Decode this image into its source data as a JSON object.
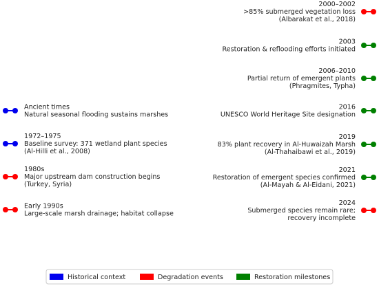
{
  "events": [
    {
      "side": "left",
      "y": 161,
      "color": "#0000ee",
      "lines": [
        "Ancient times",
        "Natural seasonal flooding sustains marshes"
      ]
    },
    {
      "side": "left",
      "y": 209,
      "color": "#0000ee",
      "lines": [
        "1972–1975",
        "Baseline survey: 371 wetland plant species",
        "(Al-Hilli et al., 2008)"
      ]
    },
    {
      "side": "left",
      "y": 257,
      "color": "#ff0000",
      "lines": [
        "1980s",
        "Major upstream dam construction begins",
        "(Turkey, Syria)"
      ]
    },
    {
      "side": "left",
      "y": 305,
      "color": "#ff0000",
      "lines": [
        "Early 1990s",
        "Large-scale marsh drainage; habitat collapse"
      ]
    },
    {
      "side": "right",
      "y": 17,
      "color": "#ff0000",
      "lines": [
        "2000–2002",
        ">85% submerged vegetation loss",
        "(Albarakat et al., 2018)"
      ]
    },
    {
      "side": "right",
      "y": 66,
      "color": "#008000",
      "lines": [
        "2003",
        "Restoration & reflooding efforts initiated"
      ]
    },
    {
      "side": "right",
      "y": 114,
      "color": "#008000",
      "lines": [
        "2006–2010",
        "Partial return of emergent plants",
        "(Phragmites, Typha)"
      ]
    },
    {
      "side": "right",
      "y": 161,
      "color": "#008000",
      "lines": [
        "2016",
        "UNESCO World Heritage Site designation"
      ]
    },
    {
      "side": "right",
      "y": 210,
      "color": "#008000",
      "lines": [
        "2019",
        "83% plant recovery in Al-Huwaizah Marsh",
        "(Al-Thahaibawi et al., 2019)"
      ]
    },
    {
      "side": "right",
      "y": 258,
      "color": "#008000",
      "lines": [
        "2021",
        "Restoration of emergent species confirmed",
        "(Al-Mayah & Al-Eidani, 2021)"
      ]
    },
    {
      "side": "right",
      "y": 306,
      "color": "#ff0000",
      "lines": [
        "2024",
        "Submerged species remain rare;",
        "recovery incomplete"
      ]
    }
  ],
  "legend": [
    {
      "name": "Historical context",
      "color": "#0000ee"
    },
    {
      "name": "Degradation events",
      "color": "#ff0000"
    },
    {
      "name": "Restoration milestones",
      "color": "#008000"
    }
  ]
}
